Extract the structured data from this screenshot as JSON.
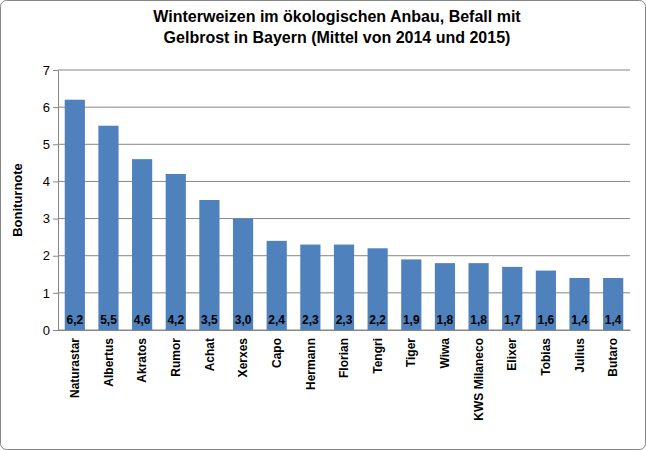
{
  "chart_data": {
    "type": "bar",
    "title": "Winterweizen im ökologischen Anbau, Befall mit Gelbrost in Bayern (Mittel von 2014 und 2015)",
    "y_label": "Boniturnote",
    "categories": [
      "Naturastar",
      "Albertus",
      "Akratos",
      "Rumor",
      "Achat",
      "Xerxes",
      "Capo",
      "Hermann",
      "Florian",
      "Tengri",
      "Tiger",
      "Wiwa",
      "KWS Milaneco",
      "Elixer",
      "Tobias",
      "Julius",
      "Butaro"
    ],
    "values": [
      6.2,
      5.5,
      4.6,
      4.2,
      3.5,
      3.0,
      2.4,
      2.3,
      2.3,
      2.2,
      1.9,
      1.8,
      1.8,
      1.7,
      1.6,
      1.4,
      1.4
    ],
    "value_labels": [
      "6,2",
      "5,5",
      "4,6",
      "4,2",
      "3,5",
      "3,0",
      "2,4",
      "2,3",
      "2,3",
      "2,2",
      "1,9",
      "1,8",
      "1,8",
      "1,7",
      "1,6",
      "1,4",
      "1,4"
    ],
    "data_labels": true,
    "color": "#4f81bd",
    "ylim": [
      0,
      7
    ],
    "yticks": [
      0,
      1,
      2,
      3,
      4,
      5,
      6,
      7
    ],
    "grid": true
  }
}
